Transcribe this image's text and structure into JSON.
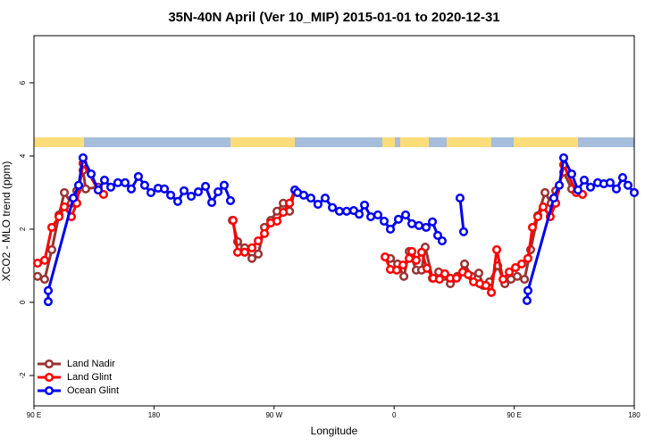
{
  "chart_data": {
    "type": "line",
    "title": "35N-40N April (Ver 10_MIP)   2015-01-01 to 2020-12-31",
    "x_label": "Longitude",
    "y_label": "XCO2 - MLO trend (ppm)",
    "xlim": [
      90,
      540
    ],
    "xticks": [
      {
        "value": 90,
        "label": "90 E"
      },
      180,
      {
        "value": 270,
        "label": "90 W"
      },
      {
        "value": 360,
        "label": "0"
      },
      {
        "value": 450,
        "label": "90 E"
      },
      {
        "value": 540,
        "label": "180"
      }
    ],
    "ylim": [
      -2.83,
      7.29
    ],
    "yticks": [
      -2,
      0,
      2,
      4,
      6
    ],
    "legend": "bottom-left",
    "series": [
      {
        "name": "Land Nadir",
        "color": "#993333",
        "x": [
          92.7,
          98.0,
          103.4,
          108.8,
          112.8,
          118.1,
          122.1,
          126.8,
          128.8,
          138.2,
          null,
          238.7,
          242.7,
          248.0,
          253.4,
          258.1,
          262.8,
          267.5,
          272.2,
          276.9,
          281.6,
          285.6,
          null,
          357.2,
          362.6,
          367.3,
          371.3,
          376.6,
          380.6,
          383.3,
          388.7,
          393.4,
          397.4,
          402.1,
          407.4,
          412.8,
          418.1,
          423.5,
          426.8,
          431.5,
          437.6,
          443.0,
          447.6,
          452.3,
          457.7,
          462.3,
          467.7,
          473.1,
          477.7,
          481.1,
          487.1,
          493.1
        ],
        "values": [
          0.71,
          0.63,
          1.44,
          2.39,
          3.0,
          2.71,
          3.05,
          3.61,
          3.1,
          3.15,
          null,
          2.24,
          1.66,
          1.49,
          1.2,
          1.32,
          2.05,
          2.24,
          2.49,
          2.71,
          2.49,
          3.07,
          null,
          1.2,
          1.05,
          0.71,
          1.39,
          0.88,
          0.88,
          1.51,
          0.66,
          0.83,
          0.71,
          0.51,
          0.71,
          1.05,
          0.71,
          0.8,
          0.46,
          0.56,
          1.0,
          0.51,
          0.63,
          0.71,
          0.63,
          1.44,
          2.37,
          3.0,
          2.71,
          3.05,
          3.56,
          3.1
        ]
      },
      {
        "name": "Land Glint",
        "color": "#ff0000",
        "x": [
          92.7,
          98.0,
          103.4,
          108.8,
          112.8,
          118.1,
          122.1,
          126.8,
          138.2,
          142.2,
          null,
          239.3,
          242.7,
          248.0,
          253.4,
          258.1,
          262.8,
          267.5,
          272.2,
          276.9,
          281.6,
          285.6,
          null,
          353.2,
          357.2,
          361.9,
          366.6,
          371.3,
          373.3,
          376.6,
          380.6,
          384.6,
          389.3,
          394.0,
          398.0,
          402.1,
          406.7,
          411.4,
          415.5,
          419.5,
          424.2,
          428.8,
          432.9,
          436.9,
          441.6,
          446.3,
          451.0,
          455.6,
          460.3,
          463.7,
          467.7,
          471.7,
          477.0,
          481.1,
          487.1,
          496.5,
          501.2
        ],
        "values": [
          1.07,
          1.15,
          2.05,
          2.34,
          2.61,
          2.34,
          2.71,
          3.8,
          3.07,
          2.95,
          null,
          2.24,
          1.37,
          1.37,
          1.49,
          1.68,
          1.88,
          2.17,
          2.22,
          2.46,
          2.71,
          3.07,
          null,
          1.24,
          0.9,
          0.88,
          1.02,
          1.2,
          1.39,
          1.15,
          1.37,
          0.93,
          0.66,
          0.63,
          0.78,
          0.66,
          0.66,
          0.83,
          0.76,
          0.56,
          0.51,
          0.46,
          0.27,
          1.44,
          0.63,
          0.83,
          0.95,
          1.05,
          1.2,
          2.05,
          2.34,
          2.61,
          2.34,
          2.71,
          3.76,
          3.0,
          2.95
        ]
      },
      {
        "name": "Ocean Glint",
        "color": "#0000ee",
        "x": [
          100.7,
          100.7,
          119.5,
          123.5,
          126.8,
          132.9,
          138.2,
          142.9,
          147.6,
          152.9,
          158.3,
          163.0,
          168.3,
          173.0,
          177.7,
          183.1,
          187.8,
          192.5,
          197.8,
          202.5,
          207.9,
          213.2,
          218.6,
          223.3,
          228.0,
          232.6,
          237.3,
          null,
          285.6,
          287.6,
          292.2,
          297.6,
          302.9,
          308.3,
          313.7,
          319.0,
          324.4,
          329.7,
          333.8,
          337.8,
          342.5,
          347.8,
          352.5,
          357.2,
          363.2,
          368.6,
          373.3,
          378.6,
          384.0,
          388.7,
          392.7,
          396.0,
          null,
          409.4,
          412.1,
          null,
          459.6,
          460.3,
          479.7,
          483.8,
          487.1,
          493.1,
          497.8,
          502.5,
          507.2,
          512.6,
          517.2,
          521.9,
          526.6,
          531.3,
          535.3,
          540.0
        ],
        "values": [
          0.02,
          0.32,
          2.85,
          3.2,
          3.95,
          3.51,
          3.07,
          3.34,
          3.15,
          3.27,
          3.27,
          3.1,
          3.44,
          3.2,
          3.0,
          3.12,
          3.1,
          2.93,
          2.76,
          3.05,
          2.9,
          3.02,
          3.17,
          2.73,
          3.02,
          3.2,
          2.78,
          null,
          3.07,
          3.0,
          2.93,
          2.85,
          2.68,
          2.85,
          2.59,
          2.49,
          2.49,
          2.51,
          2.41,
          2.66,
          2.34,
          2.39,
          2.22,
          2.0,
          2.27,
          2.39,
          2.15,
          2.1,
          2.05,
          2.2,
          1.83,
          1.68,
          null,
          2.85,
          1.93,
          null,
          0.05,
          0.32,
          2.85,
          3.2,
          3.95,
          3.51,
          3.07,
          3.34,
          3.15,
          3.27,
          3.24,
          3.27,
          3.1,
          3.41,
          3.2,
          3.0
        ]
      }
    ]
  }
}
